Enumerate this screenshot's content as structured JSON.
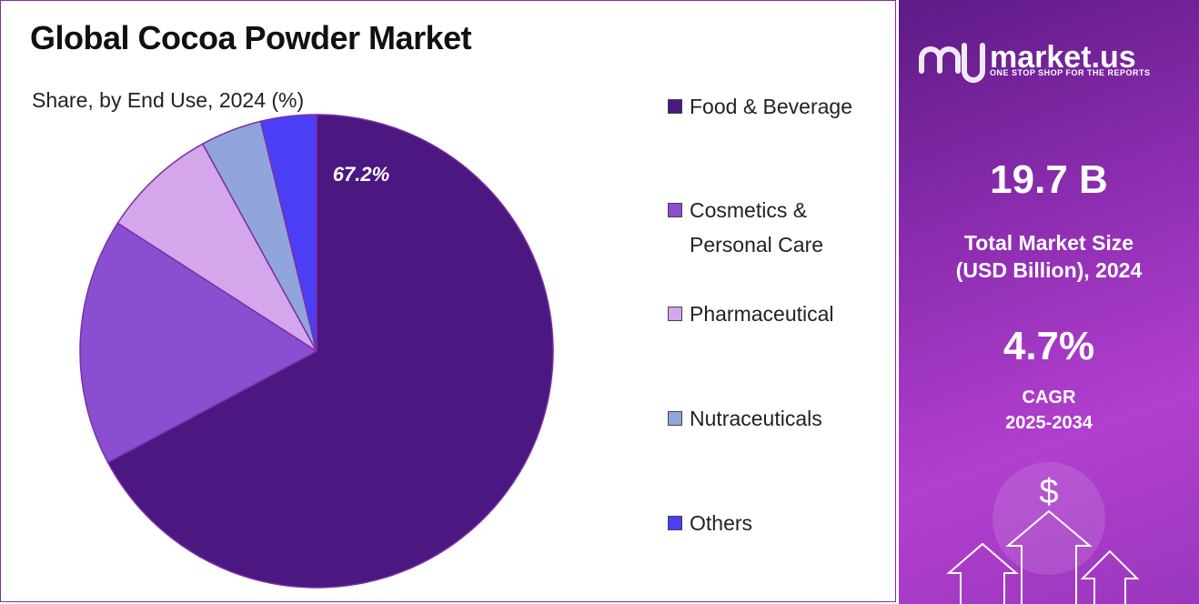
{
  "chart_data": {
    "type": "pie",
    "title": "Global Cocoa Powder Market",
    "subtitle": "Share, by End Use, 2024 (%)",
    "categories": [
      "Food & Beverage",
      "Cosmetics & Personal Care",
      "Pharmaceutical",
      "Nutraceuticals",
      "Others"
    ],
    "values": [
      67.2,
      16.9,
      7.9,
      4.2,
      3.8
    ],
    "value_labels": [
      "67.2%",
      null,
      null,
      null,
      null
    ],
    "colors": [
      "#4b1780",
      "#8a4fd0",
      "#d4a6ec",
      "#8fa5dc",
      "#4b3ff5"
    ],
    "legend": "right"
  },
  "sidebar": {
    "brand": {
      "name": "market.us",
      "tagline": "ONE STOP SHOP FOR THE REPORTS"
    },
    "stats": [
      {
        "value": "19.7 B",
        "label_lines": [
          "Total Market Size",
          "(USD Billion), 2024"
        ]
      },
      {
        "value": "4.7%",
        "label_lines": [
          "CAGR",
          "2025-2034"
        ]
      }
    ],
    "icon": "$"
  }
}
